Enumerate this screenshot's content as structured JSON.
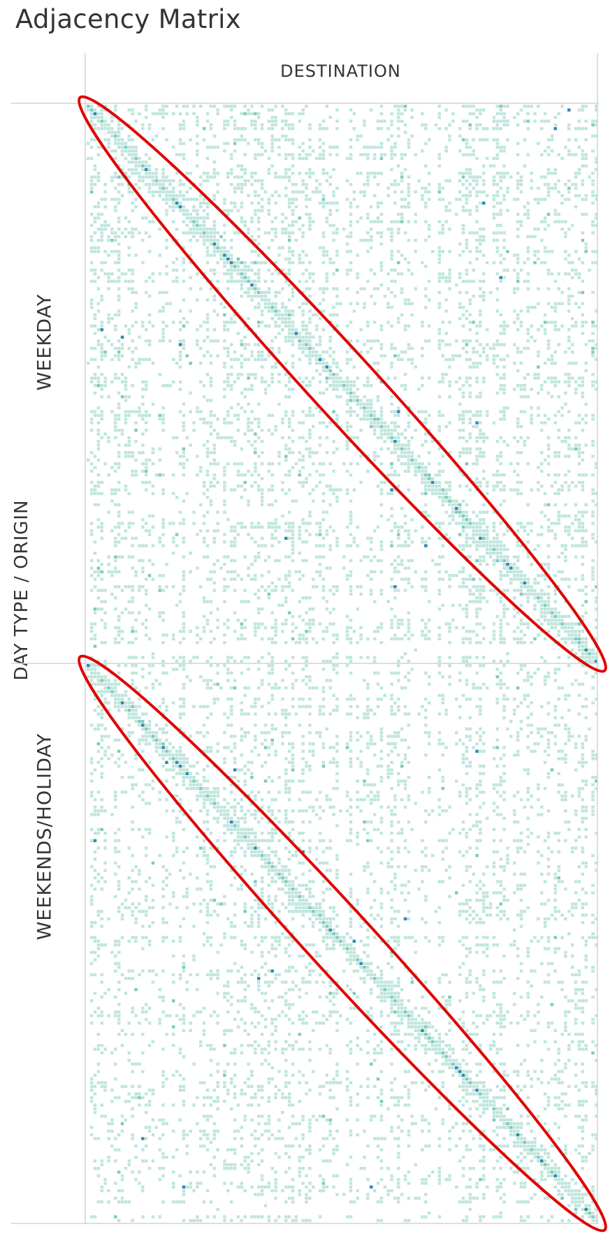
{
  "title": "Adjacency Matrix",
  "chart_data": {
    "type": "heatmap",
    "title": "Adjacency Matrix",
    "column_header": "DESTINATION",
    "row_axis_label": "DAY TYPE  /  ORIGIN",
    "panels": [
      {
        "label": "WEEKDAY",
        "dense_diagonal": true,
        "annotation": "red ellipse around main diagonal"
      },
      {
        "label": "WEEKENDS/HOLIDAY",
        "dense_diagonal": true,
        "annotation": "red ellipse around main diagonal"
      }
    ],
    "x_dimension": "DESTINATION",
    "y_dimension": "ORIGIN",
    "facet": "DAY TYPE",
    "colors": {
      "cell_light": "#bfe5dc",
      "cell_mid": "#7fcabb",
      "cell_dark": "#2f8ab0",
      "grid_line": "#d4d4d4",
      "annotation": "#e00000"
    }
  }
}
